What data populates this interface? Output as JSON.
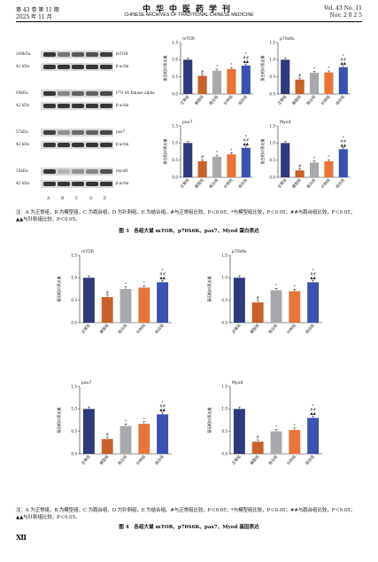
{
  "header": {
    "volume_issue": "第 43 卷 第 11 期",
    "date": "2025 年 11 月",
    "journal_cn": "中华中医药学刊",
    "journal_en": "CHINESE ARCHIVES OF TRADITIONAL CHINESE MEDICINE",
    "vol_en": "Vol. 43 No. 11",
    "date_en": "Nov. 2 0 2 5"
  },
  "western_blot": {
    "rows": [
      {
        "mw": "209kDa",
        "name": "mTOR",
        "bands": [
          0.9,
          0.55,
          0.7,
          0.75,
          0.85
        ]
      },
      {
        "mw": "42 kDa",
        "name": "β-actin",
        "bands": [
          0.9,
          0.9,
          0.9,
          0.9,
          0.9
        ]
      },
      {
        "mw": "69kDa",
        "name": "P70 S6 Kinase alpha",
        "bands": [
          0.9,
          0.45,
          0.65,
          0.65,
          0.8
        ]
      },
      {
        "mw": "42 kDa",
        "name": "β-actin",
        "bands": [
          0.9,
          0.9,
          0.9,
          0.9,
          0.9
        ]
      },
      {
        "mw": "57kDa",
        "name": "pax7",
        "bands": [
          0.85,
          0.4,
          0.6,
          0.65,
          0.8
        ]
      },
      {
        "mw": "42 kDa",
        "name": "β-actin",
        "bands": [
          0.9,
          0.9,
          0.9,
          0.9,
          0.9
        ]
      },
      {
        "mw": "35kDa",
        "name": "myod1",
        "bands": [
          0.9,
          0.2,
          0.4,
          0.45,
          0.75
        ]
      },
      {
        "mw": "42 kDa",
        "name": "β-actin",
        "bands": [
          0.9,
          0.9,
          0.9,
          0.9,
          0.9
        ]
      }
    ],
    "lanes": [
      "A",
      "B",
      "C",
      "D",
      "E"
    ]
  },
  "colors": {
    "normal": "#2e3a7a",
    "model": "#c8612a",
    "run": "#a9a9ad",
    "acu": "#e9743a",
    "combo": "#3a52b0"
  },
  "chart_data": [
    {
      "type": "bar",
      "title": "mTOR",
      "ylabel": "蛋白相对表达量",
      "ylim": [
        0,
        1.5
      ],
      "yticks": [
        "0.0",
        "0.5",
        "1.0",
        "1.5"
      ],
      "categories": [
        "正常组",
        "模型组",
        "跑台组",
        "针刺组",
        "结合组"
      ],
      "values": [
        1.0,
        0.53,
        0.68,
        0.73,
        0.83
      ],
      "marks": [
        "",
        "#",
        "*",
        "*",
        "*\n##\n▲▲"
      ]
    },
    {
      "type": "bar",
      "title": "p70s6k",
      "ylabel": "蛋白相对表达量",
      "ylim": [
        0,
        1.5
      ],
      "yticks": [
        "0.0",
        "0.5",
        "1.0",
        "1.5"
      ],
      "categories": [
        "正常组",
        "模型组",
        "跑台组",
        "针刺组",
        "结合组"
      ],
      "values": [
        1.0,
        0.42,
        0.62,
        0.63,
        0.78
      ],
      "marks": [
        "",
        "#",
        "*",
        "*",
        "*\n##\n▲▲"
      ]
    },
    {
      "type": "bar",
      "title": "pax7",
      "ylabel": "蛋白相对表达量",
      "ylim": [
        0,
        1.5
      ],
      "yticks": [
        "0.0",
        "0.5",
        "1.0",
        "1.5"
      ],
      "categories": [
        "正常组",
        "模型组",
        "跑台组",
        "针刺组",
        "结合组"
      ],
      "values": [
        1.0,
        0.47,
        0.6,
        0.67,
        0.86
      ],
      "marks": [
        "",
        "#",
        "*",
        "*",
        "*\n##\n▲▲"
      ]
    },
    {
      "type": "bar",
      "title": "Myod",
      "ylabel": "蛋白相对表达量",
      "ylim": [
        0,
        1.5
      ],
      "yticks": [
        "0.0",
        "0.5",
        "1.0",
        "1.5"
      ],
      "categories": [
        "正常组",
        "模型组",
        "跑台组",
        "针刺组",
        "结合组"
      ],
      "values": [
        1.0,
        0.2,
        0.43,
        0.47,
        0.82
      ],
      "marks": [
        "",
        "#",
        "*",
        "*",
        "*\n##\n▲▲"
      ]
    },
    {
      "type": "bar",
      "title": "mTOR",
      "ylabel": "基因相对表达量",
      "ylim": [
        0,
        1.5
      ],
      "yticks": [
        "0.0",
        "0.5",
        "1.0",
        "1.5"
      ],
      "categories": [
        "正常组",
        "模型组",
        "跑台组",
        "针刺组",
        "结合组"
      ],
      "values": [
        1.0,
        0.57,
        0.75,
        0.78,
        0.9
      ],
      "marks": [
        "",
        "#",
        "*",
        "*",
        "*\n##\n▲▲"
      ]
    },
    {
      "type": "bar",
      "title": "p70s6k",
      "ylabel": "基因相对表达量",
      "ylim": [
        0,
        1.5
      ],
      "yticks": [
        "0.0",
        "0.5",
        "1.0",
        "1.5"
      ],
      "categories": [
        "正常组",
        "模型组",
        "跑台组",
        "针刺组",
        "结合组"
      ],
      "values": [
        1.0,
        0.45,
        0.72,
        0.7,
        0.9
      ],
      "marks": [
        "",
        "#",
        "*",
        "*",
        "*\n##\n▲▲"
      ]
    },
    {
      "type": "bar",
      "title": "pax7",
      "ylabel": "基因相对表达量",
      "ylim": [
        0,
        1.5
      ],
      "yticks": [
        "0.0",
        "0.5",
        "1.0",
        "1.5"
      ],
      "categories": [
        "正常组",
        "模型组",
        "跑台组",
        "针刺组",
        "结合组"
      ],
      "values": [
        1.0,
        0.33,
        0.62,
        0.67,
        0.88
      ],
      "marks": [
        "",
        "#",
        "*",
        "*",
        "*\n##\n▲▲"
      ]
    },
    {
      "type": "bar",
      "title": "Myod",
      "ylabel": "基因相对表达量",
      "ylim": [
        0,
        1.5
      ],
      "yticks": [
        "0.0",
        "0.5",
        "1.0",
        "1.5"
      ],
      "categories": [
        "正常组",
        "模型组",
        "跑台组",
        "针刺组",
        "结合组"
      ],
      "values": [
        1.0,
        0.27,
        0.5,
        0.53,
        0.8
      ],
      "marks": [
        "",
        "#",
        "*",
        "*",
        "*\n##\n▲▲"
      ]
    }
  ],
  "fig3": {
    "note": "注：A 为正常组，B 为模型组，C 为跑台组，D 为针刺组，E 为结合组。#与正常组比较，P＜0.05；*与模型组比较，P＜0.05；##与跑台组比较，P＜0.05；▲▲与针刺组比较，P＜0.05。",
    "caption": "图 3　各组大鼠 mTOR、p70S6K、pax7、Myod 蛋白表达"
  },
  "fig4": {
    "note": "注：A 为正常组，B 为模型组，C 为跑台组，D 为针刺组，E 为结合组。#与正常组比较，P＜0.05；*与模型组比较，P＜0.05；##与跑台组比较，P＜0.05；▲▲与针刺组比较，P＜0.05。",
    "caption": "图 4　各组大鼠 mTOR、p70S6K、pax7、Myod 基因表达"
  },
  "page_number": "Ⅻ"
}
